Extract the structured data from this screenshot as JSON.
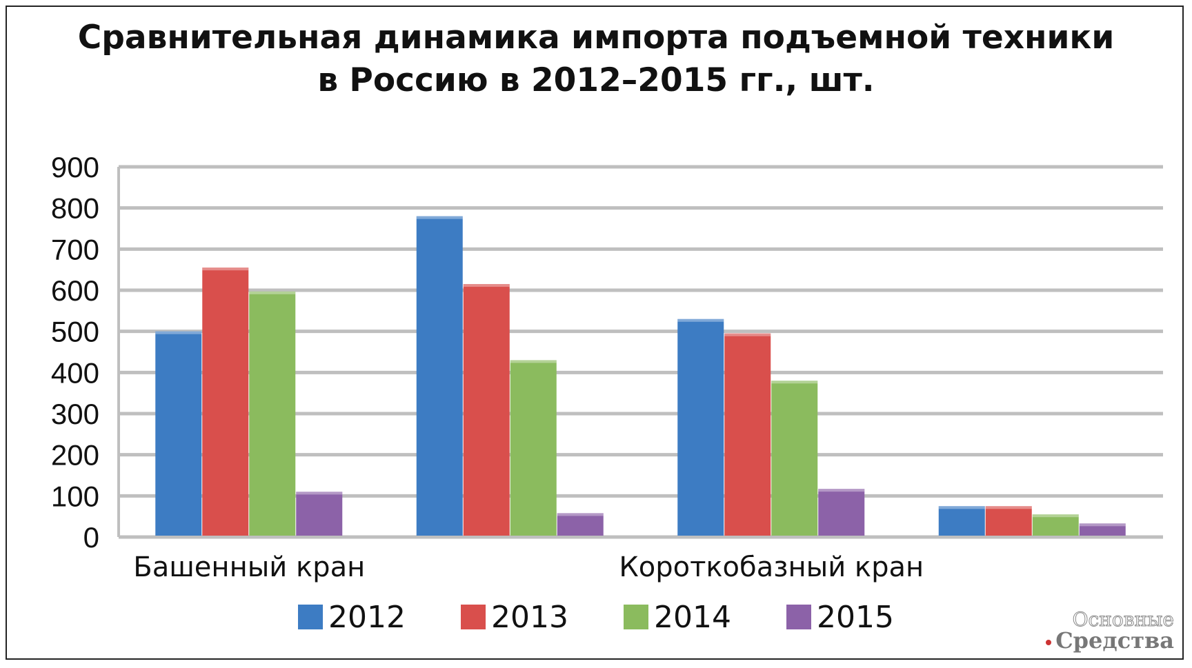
{
  "chart_data": {
    "type": "bar",
    "title": [
      "Сравнительная динамика импорта подъемной техники",
      "в Россию в 2012–2015 гг., шт."
    ],
    "categories": [
      "Башенный кран",
      "",
      "Короткобазный кран",
      ""
    ],
    "series": [
      {
        "name": "2012",
        "color": "#3d7cc3",
        "values": [
          500,
          780,
          530,
          75
        ]
      },
      {
        "name": "2013",
        "color": "#d94f4c",
        "values": [
          655,
          615,
          495,
          75
        ]
      },
      {
        "name": "2014",
        "color": "#8bbb5e",
        "values": [
          597,
          430,
          380,
          55
        ]
      },
      {
        "name": "2015",
        "color": "#8c62a8",
        "values": [
          110,
          58,
          117,
          33
        ]
      }
    ],
    "ylim": [
      0,
      900
    ],
    "yticks": [
      0,
      100,
      200,
      300,
      400,
      500,
      600,
      700,
      800,
      900
    ],
    "grid": true,
    "legend": "bottom"
  },
  "watermark": {
    "line1": "Основные",
    "line2": "Средства"
  }
}
